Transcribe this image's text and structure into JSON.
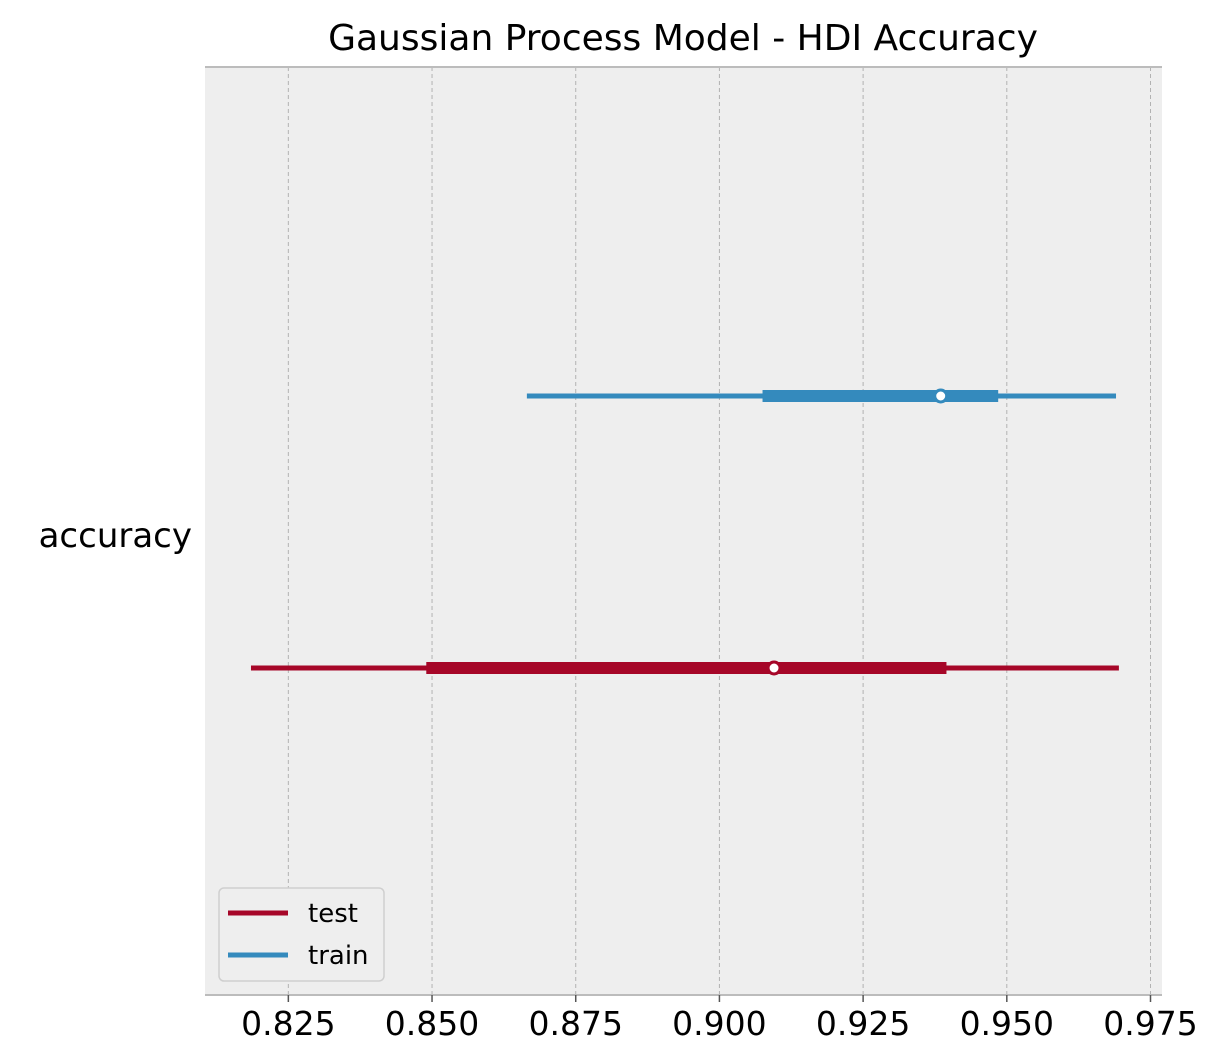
{
  "chart_data": {
    "type": "forest",
    "title": "Gaussian Process Model - HDI Accuracy",
    "xlabel": "",
    "ylabel": "",
    "y_category_label": "accuracy",
    "xlim": [
      0.8105,
      0.977
    ],
    "x_ticks": [
      0.825,
      0.85,
      0.875,
      0.9,
      0.925,
      0.95,
      0.975
    ],
    "x_tick_labels": [
      "0.825",
      "0.850",
      "0.875",
      "0.900",
      "0.925",
      "0.950",
      "0.975"
    ],
    "grid": "vertical-dashed",
    "legend_position": "lower-left",
    "series": [
      {
        "name": "train",
        "color": "#348abd",
        "hdi_outer": [
          0.8665,
          0.969
        ],
        "hdi_inner": [
          0.9075,
          0.9485
        ],
        "point": 0.9385
      },
      {
        "name": "test",
        "color": "#a60628",
        "hdi_outer": [
          0.8185,
          0.9695
        ],
        "hdi_inner": [
          0.849,
          0.9395
        ],
        "point": 0.9095
      }
    ],
    "legend_order": [
      "test",
      "train"
    ],
    "background": "#eeeeee"
  }
}
